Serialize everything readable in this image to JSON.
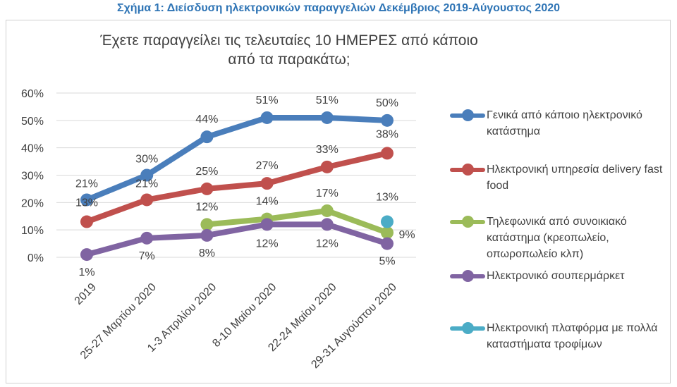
{
  "figure_title": "Σχήμα 1: Διείσδυση ηλεκτρονικών παραγγελιών Δεκέμβριος 2019-Αύγουστος 2020",
  "chart_data": {
    "type": "line",
    "title": "Έχετε παραγγείλει τις τελευταίες 10 ΗΜΕΡΕΣ από κάποιο από τα παρακάτω;",
    "categories": [
      "2019",
      "25-27 Μαρτίου 2020",
      "1-3 Απριλίου 2020",
      "8-10 Μαίου 2020",
      "22-24 Μαίου 2020",
      "29-31 Αυγούστου 2020"
    ],
    "ylim": [
      0,
      60
    ],
    "yticks": [
      "0%",
      "10%",
      "20%",
      "30%",
      "40%",
      "50%",
      "60%"
    ],
    "grid": true,
    "legend_position": "right",
    "series": [
      {
        "name": "Γενικά από κάποιο ηλεκτρονικό κατάστημα",
        "color": "#4a7ebb",
        "values": [
          21,
          30,
          44,
          51,
          51,
          50
        ]
      },
      {
        "name": "Ηλεκτρονική υπηρεσία delivery fast food",
        "color": "#c0504d",
        "values": [
          13,
          21,
          25,
          27,
          33,
          38
        ]
      },
      {
        "name": "Τηλεφωνικά από συνοικιακό κατάστημα (κρεοπωλείο, οπωροπωλείο κλπ)",
        "color": "#9bbb59",
        "values": [
          null,
          null,
          12,
          14,
          17,
          9
        ]
      },
      {
        "name": "Ηλεκτρονικό σουπερμάρκετ",
        "color": "#8064a2",
        "values": [
          1,
          7,
          8,
          12,
          12,
          5
        ]
      },
      {
        "name": "Ηλεκτρονική πλατφόρμα με πολλά καταστήματα τροφίμων",
        "color": "#4bacc6",
        "values": [
          null,
          null,
          null,
          null,
          null,
          13
        ]
      }
    ]
  }
}
